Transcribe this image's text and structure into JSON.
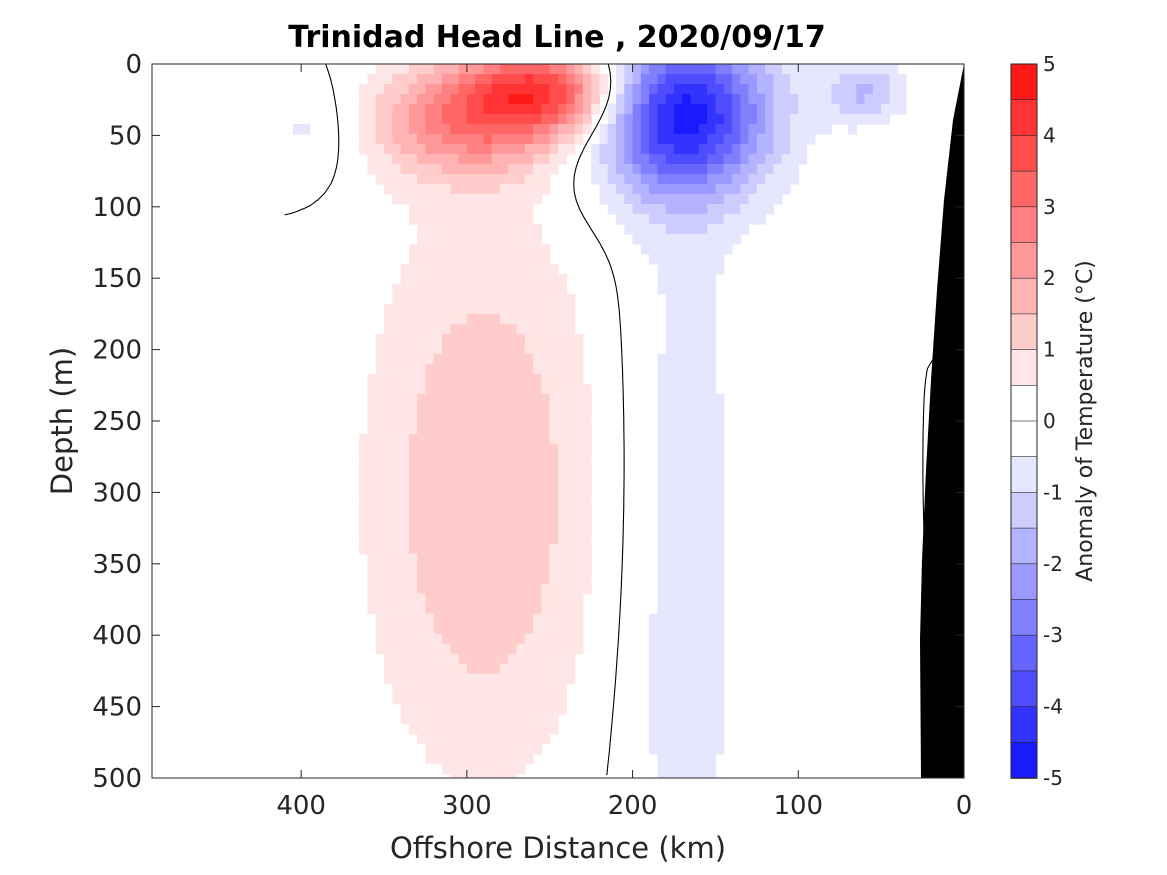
{
  "chart_data": {
    "type": "heatmap",
    "title": "Trinidad Head Line , 2020/09/17",
    "xlabel": "Offshore Distance (km)",
    "ylabel": "Depth (m)",
    "colorbar_label": "Anomaly of Temperature (°C)",
    "xlim": [
      490,
      0
    ],
    "ylim": [
      500,
      0
    ],
    "x_ticks": [
      "400",
      "300",
      "200",
      "100",
      "0"
    ],
    "y_ticks": [
      "0",
      "50",
      "100",
      "150",
      "200",
      "250",
      "300",
      "350",
      "400",
      "450",
      "500"
    ],
    "colorbar_ticks": [
      "5",
      "4",
      "3",
      "2",
      "1",
      "0",
      "-1",
      "-2",
      "-3",
      "-4",
      "-5"
    ],
    "clim": [
      -5,
      5
    ],
    "contour_levels": [
      -5,
      -4.5,
      -4,
      -3.5,
      -3,
      -2.5,
      -2,
      -1.5,
      -1,
      -0.5,
      0.5,
      1,
      1.5,
      2,
      2.5,
      3,
      3.5,
      4,
      4.5,
      5
    ],
    "level_colors": [
      "#0000ff",
      "#1a1aff",
      "#3333ff",
      "#4d4dff",
      "#6666ff",
      "#8080ff",
      "#9999ff",
      "#b3b3ff",
      "#ccccff",
      "#e6e6ff",
      "#ffffff",
      "#ffe6e6",
      "#ffcccc",
      "#ffb3b3",
      "#ff9999",
      "#ff8080",
      "#ff6666",
      "#ff4d4d",
      "#ff3333",
      "#ff1a1a",
      "#ff0000"
    ],
    "data_extent_km": [
      410,
      0
    ],
    "zero_contour": true,
    "seafloor_color": "#000000",
    "features": [
      {
        "name": "surface warm patch",
        "x_km": 250,
        "depth_m": 18,
        "anomaly": 3.5
      },
      {
        "name": "near-surface warm patch",
        "x_km": 300,
        "depth_m": 40,
        "anomaly": 2.5
      },
      {
        "name": "subsurface warm tongue",
        "x_km": 290,
        "depth_m": 300,
        "anomaly": 1.5
      },
      {
        "name": "cold core",
        "x_km": 170,
        "depth_m": 35,
        "anomaly": -4.5
      },
      {
        "name": "cold tongue",
        "x_km": 170,
        "depth_m": 350,
        "anomaly": -0.8
      },
      {
        "name": "small cold patch",
        "x_km": 60,
        "depth_m": 20,
        "anomaly": -1.5
      },
      {
        "name": "offshore cold patch",
        "x_km": 395,
        "depth_m": 45,
        "anomaly": -0.7
      }
    ]
  }
}
